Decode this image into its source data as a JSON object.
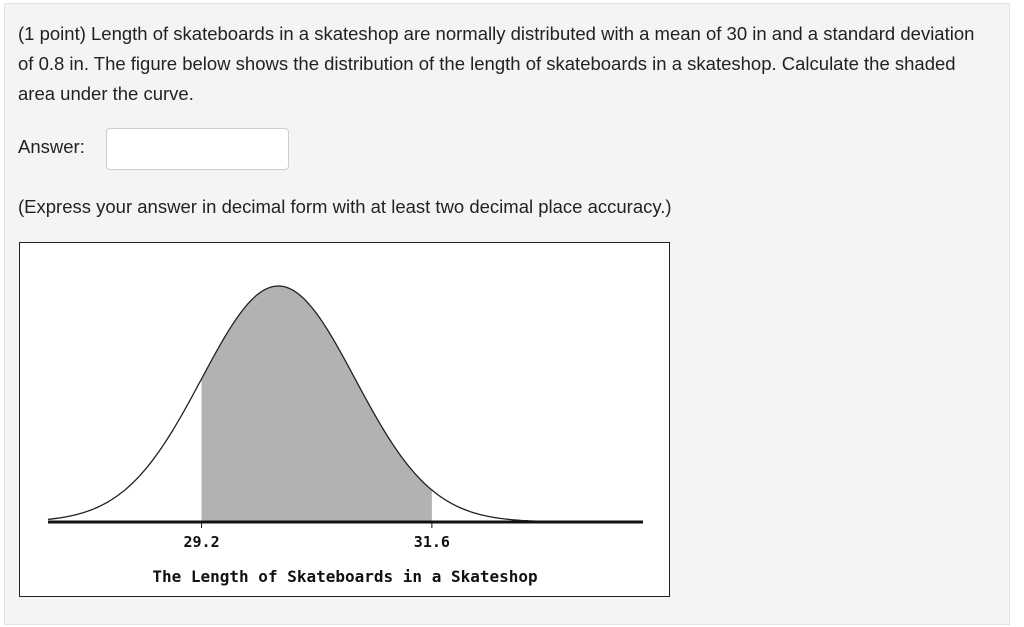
{
  "question": {
    "text": "(1 point) Length of skateboards in a skateshop are normally distributed with a mean of 30 in and a standard deviation of 0.8 in. The figure below shows the distribution of the length of skateboards in a skateshop. Calculate the shaded area under the curve."
  },
  "answer": {
    "label": "Answer:",
    "value": "",
    "placeholder": ""
  },
  "instruction": "(Express your answer in decimal form with at least two decimal place accuracy.)",
  "figure": {
    "xlabel": "The Length of Skateboards in a Skateshop",
    "colors": {
      "shade": "#b2b2b2",
      "curve": "#222222",
      "axis": "#111111"
    },
    "chart_data": {
      "type": "area",
      "distribution": "normal",
      "mean": 30,
      "sd": 0.8,
      "shaded_from": 29.2,
      "shaded_to": 31.6,
      "tick_labels": [
        "29.2",
        "31.6"
      ],
      "tick_values": [
        29.2,
        31.6
      ],
      "x_range": [
        27.6,
        33.8
      ],
      "xlabel": "The Length of Skateboards in a Skateshop",
      "ylabel": "",
      "title": "",
      "grid": false
    }
  }
}
